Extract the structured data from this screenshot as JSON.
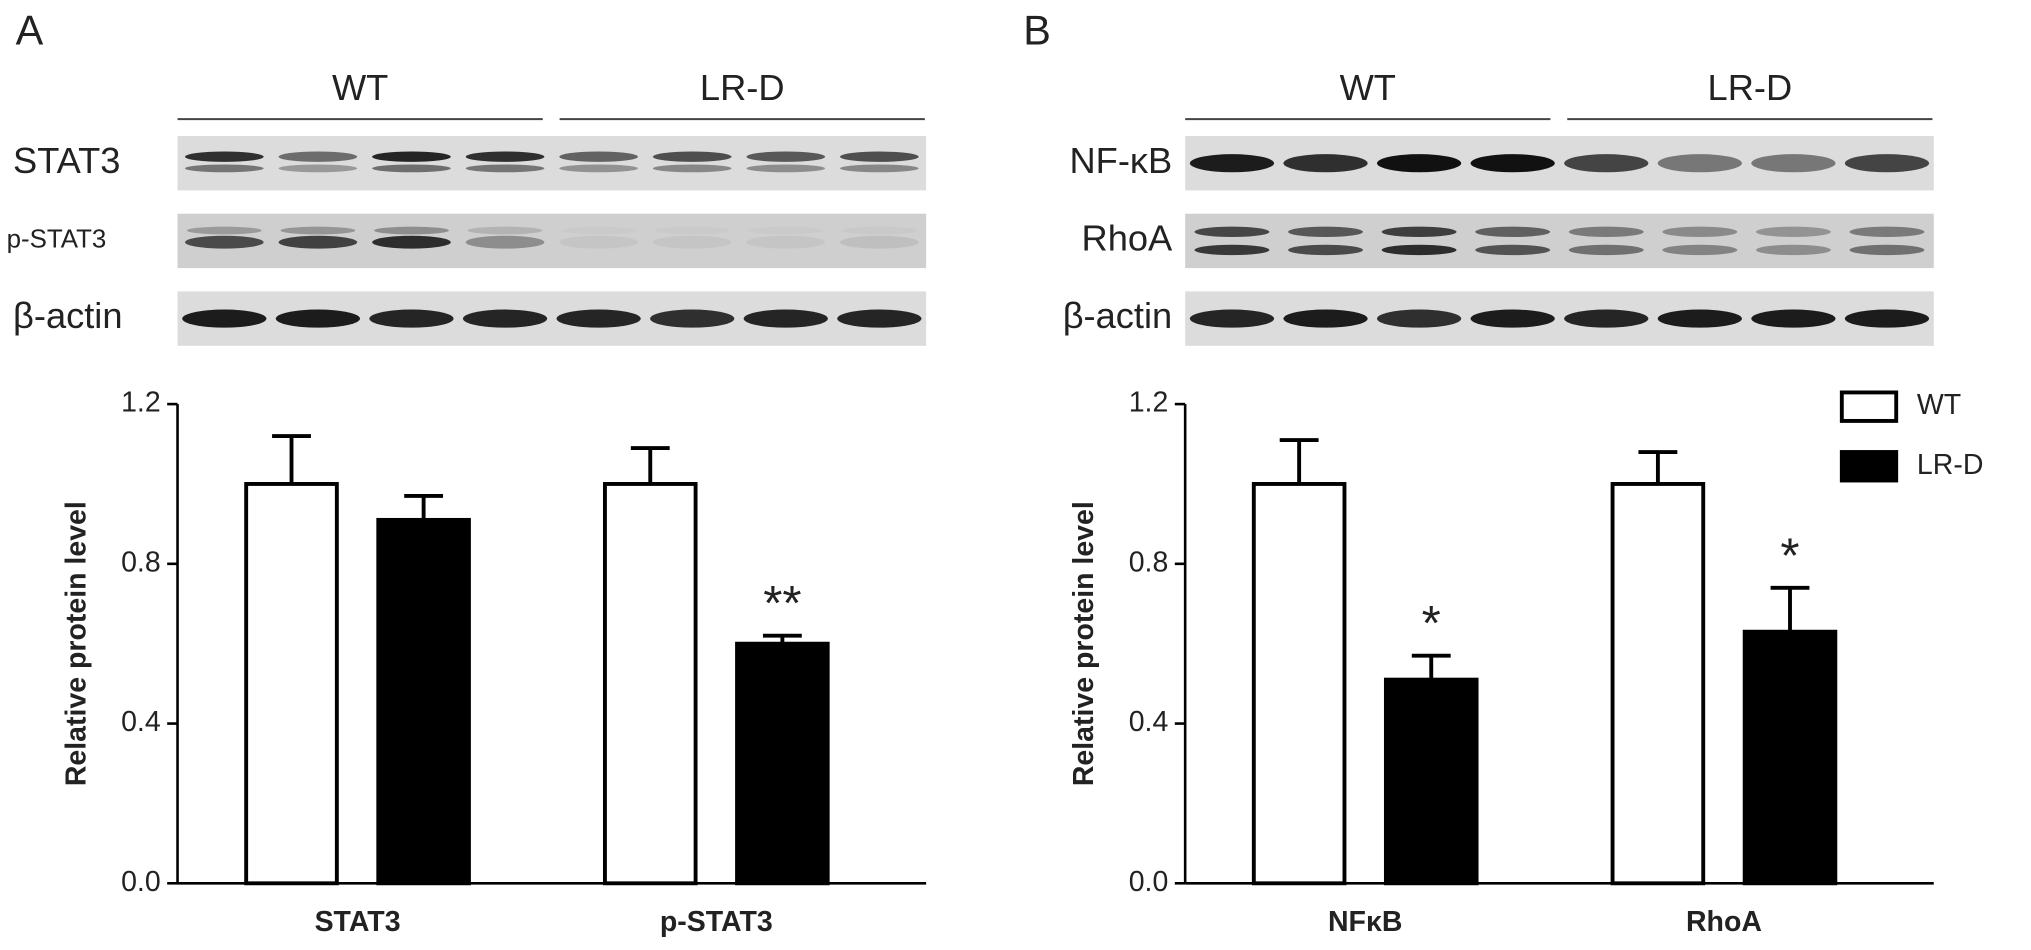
{
  "chart_data": [
    {
      "type": "bar",
      "panel": "A",
      "blot": {
        "groups": [
          "WT",
          "LR-D"
        ],
        "rows": [
          "STAT3",
          "p-STAT3",
          "β-actin"
        ]
      },
      "ylabel": "Relative protein level",
      "categories": [
        "STAT3",
        "p-STAT3"
      ],
      "series": [
        {
          "color": "#ffffff",
          "values": [
            1.0,
            1.0
          ],
          "errors": [
            0.12,
            0.09
          ],
          "annotations": [
            null,
            null
          ]
        },
        {
          "color": "#000000",
          "values": [
            0.91,
            0.6
          ],
          "errors": [
            0.06,
            0.02
          ],
          "annotations": [
            null,
            "**"
          ]
        }
      ],
      "ylim": [
        0,
        1.2
      ],
      "yticks": [
        {
          "value": 0,
          "label": "0.0"
        },
        {
          "value": 0.4,
          "label": "0.4"
        },
        {
          "value": 0.8,
          "label": "0.8"
        },
        {
          "value": 1.2,
          "label": "1.2"
        }
      ]
    },
    {
      "type": "bar",
      "panel": "B",
      "blot": {
        "groups": [
          "WT",
          "LR-D"
        ],
        "rows": [
          "NF-κB",
          "RhoA",
          "β-actin"
        ]
      },
      "ylabel": "Relative protein level",
      "categories": [
        "NFκB",
        "RhoA"
      ],
      "series": [
        {
          "name": "WT",
          "color": "#ffffff",
          "values": [
            1.0,
            1.0
          ],
          "errors": [
            0.11,
            0.08
          ],
          "annotations": [
            null,
            null
          ]
        },
        {
          "name": "LR-D",
          "color": "#000000",
          "values": [
            0.51,
            0.63
          ],
          "errors": [
            0.06,
            0.11
          ],
          "annotations": [
            "*",
            "*"
          ]
        }
      ],
      "ylim": [
        0,
        1.2
      ],
      "yticks": [
        {
          "value": 0,
          "label": "0.0"
        },
        {
          "value": 0.4,
          "label": "0.4"
        },
        {
          "value": 0.8,
          "label": "0.8"
        },
        {
          "value": 1.2,
          "label": "1.2"
        }
      ],
      "legend": "upper right"
    }
  ]
}
